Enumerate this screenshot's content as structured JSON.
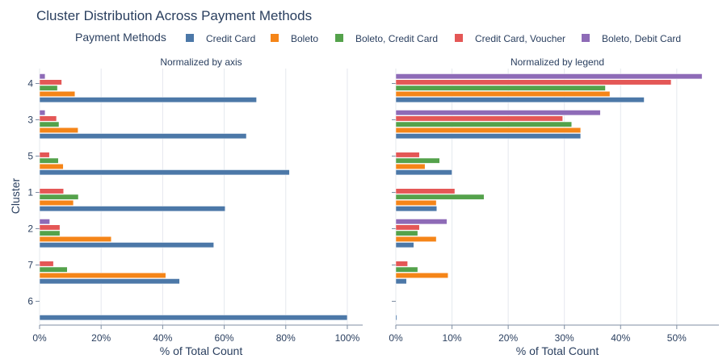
{
  "chart_data": {
    "type": "bar",
    "orientation": "horizontal",
    "title": "Cluster Distribution Across Payment Methods",
    "legend": {
      "title": "Payment Methods",
      "placement": "top",
      "entries": [
        "Credit Card",
        "Boleto",
        "Boleto, Credit Card",
        "Credit Card, Voucher",
        "Boleto, Debit Card"
      ]
    },
    "colors": {
      "Credit Card": "#4c78a8",
      "Boleto": "#f58518",
      "Boleto, Credit Card": "#54a24b",
      "Credit Card, Voucher": "#e45756",
      "Boleto, Debit Card": "#8e6bb7"
    },
    "ylabel": "Cluster",
    "grid": true,
    "panels": [
      {
        "subtitle": "Normalized by axis",
        "xlabel": "% of Total Count",
        "xlim": [
          0,
          1.05
        ],
        "xticks": [
          0,
          0.2,
          0.4,
          0.6,
          0.8,
          1.0
        ],
        "xticklabels": [
          "0%",
          "20%",
          "40%",
          "60%",
          "80%",
          "100%"
        ],
        "categories": [
          "4",
          "3",
          "5",
          "1",
          "2",
          "7",
          "6"
        ],
        "series": [
          {
            "name": "Credit Card",
            "values": [
              0.705,
              0.672,
              0.812,
              0.603,
              0.566,
              0.455,
              1.0
            ]
          },
          {
            "name": "Boleto",
            "values": [
              0.115,
              0.125,
              0.077,
              0.11,
              0.233,
              0.41,
              0
            ]
          },
          {
            "name": "Boleto, Credit Card",
            "values": [
              0.058,
              0.063,
              0.061,
              0.126,
              0.066,
              0.09,
              0
            ]
          },
          {
            "name": "Credit Card, Voucher",
            "values": [
              0.072,
              0.055,
              0.032,
              0.078,
              0.066,
              0.045,
              0
            ]
          },
          {
            "name": "Boleto, Debit Card",
            "values": [
              0.018,
              0.018,
              0,
              0,
              0.033,
              0,
              0
            ]
          }
        ]
      },
      {
        "subtitle": "Normalized by legend",
        "xlabel": "% of Total Count",
        "xlim": [
          0,
          0.575
        ],
        "xticks": [
          0,
          0.1,
          0.2,
          0.3,
          0.4,
          0.5
        ],
        "xticklabels": [
          "0%",
          "10%",
          "20%",
          "30%",
          "40%",
          "50%"
        ],
        "categories": [
          "4",
          "3",
          "5",
          "1",
          "2",
          "7",
          "6"
        ],
        "series": [
          {
            "name": "Credit Card",
            "values": [
              0.442,
              0.329,
              0.1,
              0.073,
              0.032,
              0.019,
              0.002
            ]
          },
          {
            "name": "Boleto",
            "values": [
              0.381,
              0.329,
              0.052,
              0.072,
              0.072,
              0.093,
              0
            ]
          },
          {
            "name": "Boleto, Credit Card",
            "values": [
              0.373,
              0.313,
              0.078,
              0.157,
              0.039,
              0.039,
              0
            ]
          },
          {
            "name": "Credit Card, Voucher",
            "values": [
              0.49,
              0.297,
              0.042,
              0.105,
              0.042,
              0.021,
              0
            ]
          },
          {
            "name": "Boleto, Debit Card",
            "values": [
              0.545,
              0.364,
              0,
              0,
              0.091,
              0,
              0
            ]
          }
        ]
      }
    ]
  }
}
